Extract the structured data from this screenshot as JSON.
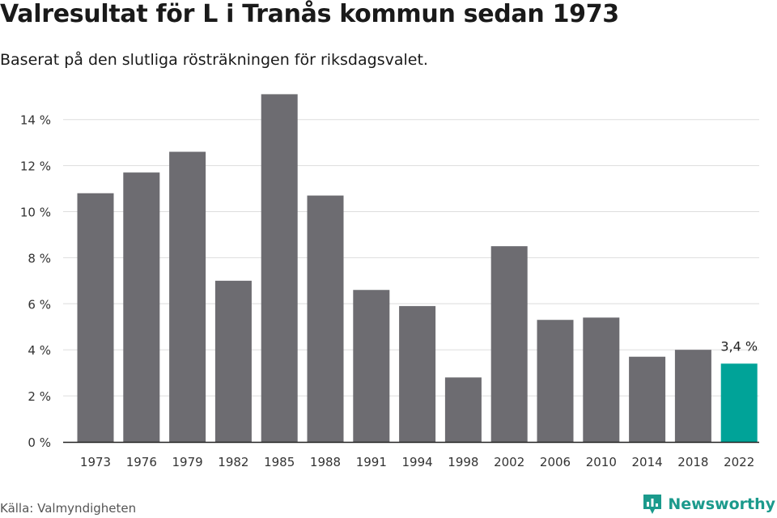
{
  "header": {
    "title": "Valresultat för L i Tranås kommun sedan 1973",
    "subtitle": "Baserat på den slutliga rösträkningen för riksdagsvalet."
  },
  "footer": {
    "source": "Källa: Valmyndigheten",
    "brand": "Newsworthy",
    "brand_color": "#1b9a8c"
  },
  "chart_data": {
    "type": "bar",
    "title": "",
    "xlabel": "",
    "ylabel": "",
    "categories": [
      "1973",
      "1976",
      "1979",
      "1982",
      "1985",
      "1988",
      "1991",
      "1994",
      "1998",
      "2002",
      "2006",
      "2010",
      "2014",
      "2018",
      "2022"
    ],
    "values": [
      10.8,
      11.7,
      12.6,
      7.0,
      15.1,
      10.7,
      6.6,
      5.9,
      2.8,
      8.5,
      5.3,
      5.4,
      3.7,
      4.0,
      3.4
    ],
    "ylim": [
      0,
      15.5
    ],
    "yticks": [
      0,
      2,
      4,
      6,
      8,
      10,
      12,
      14
    ],
    "ytick_labels": [
      "0 %",
      "2 %",
      "4 %",
      "6 %",
      "8 %",
      "10 %",
      "12 %",
      "14 %"
    ],
    "highlight_index": 14,
    "highlight_label": "3,4 %",
    "grid": true,
    "colors": {
      "bar": "#6d6c71",
      "highlight": "#00a398",
      "grid": "#dddddd",
      "axis": "#222222"
    }
  }
}
